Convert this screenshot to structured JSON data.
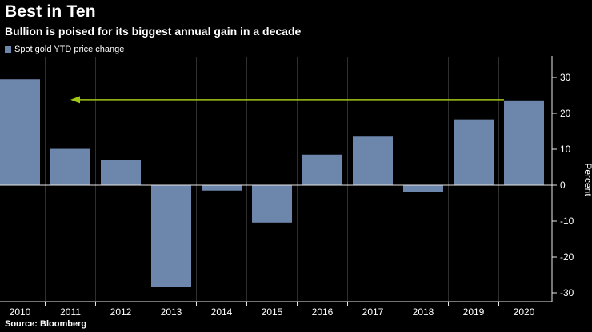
{
  "header": {
    "title": "Best in Ten",
    "subtitle": "Bullion is poised for its biggest annual gain in a decade"
  },
  "legend": {
    "label": "Spot gold YTD price change"
  },
  "footer": {
    "source": "Source: Bloomberg"
  },
  "colors": {
    "background": "#000000",
    "bar": "#6d86ac",
    "arrow": "#a2c617",
    "axis": "#e8e8e8",
    "grid": "#2e2e2e",
    "text": "#ffffff"
  },
  "chart_data": {
    "type": "bar",
    "title": "Best in Ten",
    "subtitle": "Bullion is poised for its biggest annual gain in a decade",
    "series_name": "Spot gold YTD price change",
    "categories": [
      "2010",
      "2011",
      "2012",
      "2013",
      "2014",
      "2015",
      "2016",
      "2017",
      "2018",
      "2019",
      "2020"
    ],
    "values": [
      29.5,
      10.1,
      7.1,
      -28.3,
      -1.5,
      -10.4,
      8.5,
      13.5,
      -1.9,
      18.3,
      23.6
    ],
    "xlabel": "",
    "ylabel": "Percent",
    "yticks": [
      30,
      20,
      10,
      0,
      -10,
      -20,
      -30
    ],
    "ylim": [
      -32.5,
      35.5
    ],
    "grid": "vertical",
    "legend_position": "top-left",
    "y_axis_side": "right",
    "annotation": {
      "type": "arrow",
      "direction": "left",
      "y_value": 23.8,
      "from_category": "2020",
      "to_category": "2011"
    }
  }
}
